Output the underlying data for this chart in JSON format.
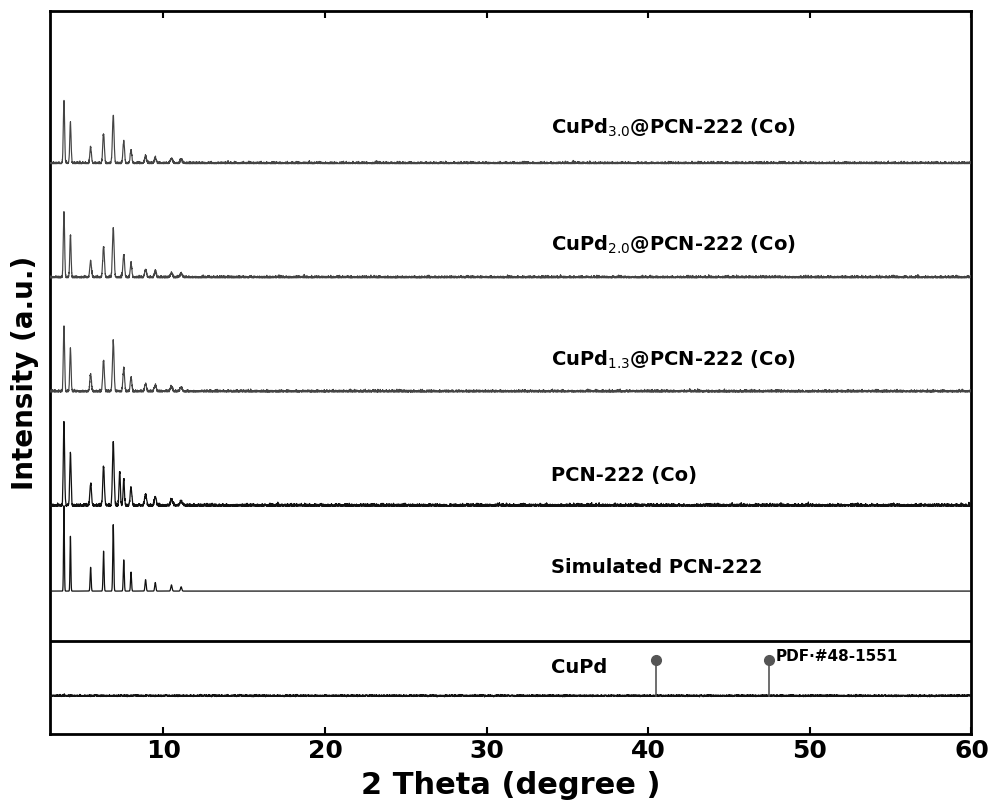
{
  "xlim": [
    3,
    60
  ],
  "xlabel": "2 Theta (degree )",
  "ylabel": "Intensity (a.u.)",
  "xlabel_fontsize": 22,
  "ylabel_fontsize": 20,
  "tick_fontsize": 18,
  "xticks": [
    10,
    20,
    30,
    40,
    50,
    60
  ],
  "background_color": "#ffffff",
  "line_color_gray": "#444444",
  "line_color_black": "#111111",
  "offsets": [
    5.6,
    4.4,
    3.2,
    2.0,
    1.1,
    0.0
  ],
  "series_labels": [
    "CuPd$_{3.0}$@PCN-222 (Co)",
    "CuPd$_{2.0}$@PCN-222 (Co)",
    "CuPd$_{1.3}$@PCN-222 (Co)",
    "PCN-222 (Co)",
    "Simulated PCN-222",
    "CuPd"
  ],
  "label_colors": [
    "#111111",
    "#111111",
    "#111111",
    "#111111",
    "#111111",
    "#111111"
  ],
  "cupd_peaks": [
    40.5,
    47.5
  ],
  "cupd_label": "CuPd",
  "pdf_label": "PDF·#48-1551",
  "dot_color": "#555555",
  "separator_y": 0.58,
  "ylim": [
    -0.4,
    7.2
  ]
}
